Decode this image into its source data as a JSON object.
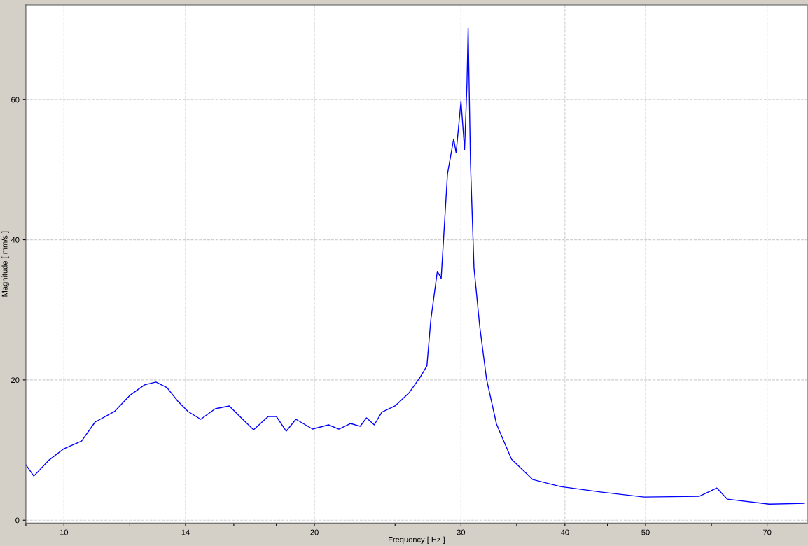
{
  "chart_data": {
    "type": "line",
    "xlabel": "Frequency [ Hz ]",
    "ylabel": "Magnitude [ mm/s ]",
    "log": "x",
    "x": [
      9.0,
      9.2,
      9.6,
      10.0,
      10.5,
      10.9,
      11.5,
      12.0,
      12.5,
      12.9,
      13.3,
      13.7,
      14.1,
      14.6,
      15.2,
      15.8,
      16.4,
      16.9,
      17.6,
      18.0,
      18.5,
      19.0,
      19.9,
      20.8,
      21.4,
      22.1,
      22.7,
      23.1,
      23.6,
      24.1,
      25.0,
      26.0,
      26.8,
      27.3,
      27.6,
      28.1,
      28.4,
      28.9,
      29.4,
      29.6,
      30.0,
      30.3,
      30.5,
      30.6,
      30.8,
      31.1,
      31.6,
      32.2,
      33.1,
      34.5,
      36.6,
      39.5,
      44.3,
      49.8,
      58.0,
      60.9,
      62.7,
      70.4,
      77.6
    ],
    "series": [
      {
        "color": "#0000ff",
        "values": [
          7.9,
          6.3,
          8.6,
          10.2,
          11.3,
          14.0,
          15.5,
          17.8,
          19.3,
          19.7,
          18.9,
          17.0,
          15.5,
          14.4,
          15.9,
          16.3,
          14.4,
          12.9,
          14.8,
          14.8,
          12.7,
          14.4,
          13.0,
          13.6,
          13.0,
          13.8,
          13.4,
          14.6,
          13.6,
          15.4,
          16.3,
          18.2,
          20.4,
          22.0,
          28.6,
          35.5,
          34.5,
          49.4,
          54.4,
          52.4,
          59.8,
          52.9,
          62.3,
          70.2,
          50.9,
          36.0,
          27.6,
          20.1,
          13.7,
          8.7,
          5.8,
          4.8,
          4.0,
          3.3,
          3.4,
          4.6,
          3.0,
          2.3,
          2.4
        ]
      }
    ],
    "xlim": [
      9.0,
      78.2
    ],
    "ylim": [
      -0.4,
      73.5
    ],
    "xticks": [
      {
        "value": 9,
        "label": null
      },
      10,
      {
        "value": 12,
        "label": null
      },
      14,
      {
        "value": 16,
        "label": null
      },
      {
        "value": 18,
        "label": null
      },
      20,
      {
        "value": 25,
        "label": null
      },
      30,
      {
        "value": 35,
        "label": null
      },
      40,
      {
        "value": 45,
        "label": null
      },
      50,
      {
        "value": 60,
        "label": null
      },
      70
    ],
    "yticks": [
      0,
      20,
      40,
      60
    ],
    "grid": true,
    "marker": "none",
    "line_style": "solid"
  }
}
